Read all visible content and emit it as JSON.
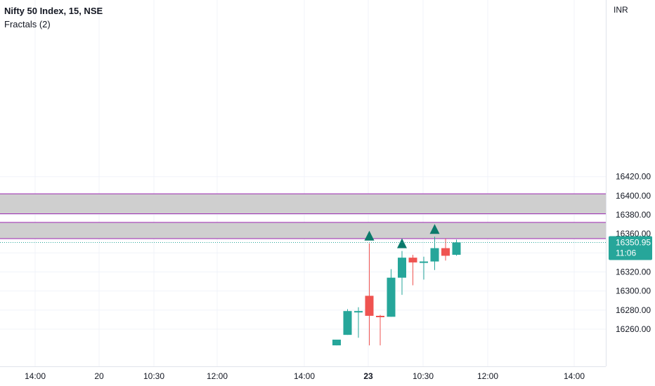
{
  "header": {
    "symbol_line": "Nifty 50 Index, 15, NSE",
    "indicator": "Fractals (2)",
    "currency": "INR"
  },
  "colors": {
    "up": "#26a69a",
    "down": "#ef5350",
    "fractal": "#0b7a6b",
    "zone_fill": "#cfcfcf",
    "zone_border": "#9c27b0",
    "price_line": "#26a69a",
    "price_tag": "#26a69a",
    "grid": "#f0f3fa"
  },
  "chart_data": {
    "type": "candlestick",
    "currency": "INR",
    "y_ticks": [
      "16260.00",
      "16280.00",
      "16300.00",
      "16320.00",
      "16340.00",
      "16360.00",
      "16380.00",
      "16400.00",
      "16420.00"
    ],
    "x_ticks": [
      "14:00",
      "20",
      "10:30",
      "12:00",
      "14:00",
      "23",
      "10:30",
      "12:00",
      "14:00"
    ],
    "bold_x_ticks": [
      "23"
    ],
    "last_price": {
      "value": "16350.95",
      "countdown": "11:06",
      "price": 16350.95
    },
    "zones": [
      {
        "from": 16381,
        "to": 16402
      },
      {
        "from": 16355,
        "to": 16372
      }
    ],
    "candles": [
      {
        "open": 16243,
        "high": 16249,
        "low": 16243,
        "close": 16249
      },
      {
        "open": 16254,
        "high": 16281,
        "low": 16254,
        "close": 16279
      },
      {
        "open": 16279,
        "high": 16283,
        "low": 16251,
        "close": 16279
      },
      {
        "open": 16295,
        "high": 16350,
        "low": 16243,
        "close": 16274
      },
      {
        "open": 16274,
        "high": 16275,
        "low": 16243,
        "close": 16273
      },
      {
        "open": 16273,
        "high": 16323,
        "low": 16273,
        "close": 16314
      },
      {
        "open": 16314,
        "high": 16342,
        "low": 16296,
        "close": 16335
      },
      {
        "open": 16335,
        "high": 16338,
        "low": 16306,
        "close": 16330
      },
      {
        "open": 16331,
        "high": 16336,
        "low": 16312,
        "close": 16331
      },
      {
        "open": 16331,
        "high": 16357,
        "low": 16322,
        "close": 16345
      },
      {
        "open": 16345,
        "high": 16355,
        "low": 16332,
        "close": 16337
      },
      {
        "open": 16338,
        "high": 16354,
        "low": 16337,
        "close": 16351
      }
    ],
    "fractals": [
      {
        "candle": 3,
        "price": 16350
      },
      {
        "candle": 6,
        "price": 16342
      },
      {
        "candle": 9,
        "price": 16357
      }
    ]
  }
}
